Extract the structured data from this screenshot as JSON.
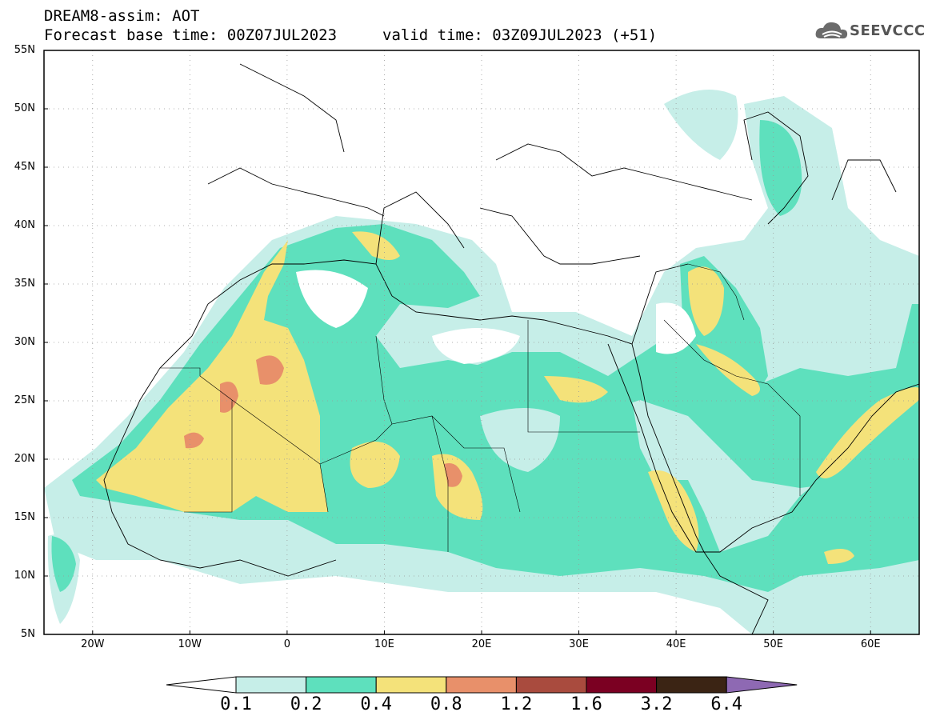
{
  "header": {
    "line1": "DREAM8-assim: AOT",
    "line2": "Forecast base time: 00Z07JUL2023",
    "valid": "valid time: 03Z09JUL2023 (+51)"
  },
  "logo": {
    "text": "SEEVCCC",
    "icon": "cloud-logo-icon"
  },
  "map": {
    "lat_labels": [
      "55N",
      "50N",
      "45N",
      "40N",
      "35N",
      "30N",
      "25N",
      "20N",
      "15N",
      "10N",
      "5N"
    ],
    "lon_labels": [
      "20W",
      "10W",
      "0",
      "10E",
      "20E",
      "30E",
      "40E",
      "50E",
      "60E"
    ],
    "lat_range": [
      5,
      55
    ],
    "lon_range": [
      -25,
      65
    ],
    "grid": "dotted"
  },
  "colorbar": {
    "levels": [
      "0.1",
      "0.2",
      "0.4",
      "0.8",
      "1.2",
      "1.6",
      "3.2",
      "6.4"
    ],
    "colors": [
      "#ffffff",
      "#c6eee8",
      "#5ee0bd",
      "#f4e27a",
      "#e8906a",
      "#a94b3e",
      "#7b0022",
      "#3b2414",
      "#8e69b3"
    ]
  }
}
